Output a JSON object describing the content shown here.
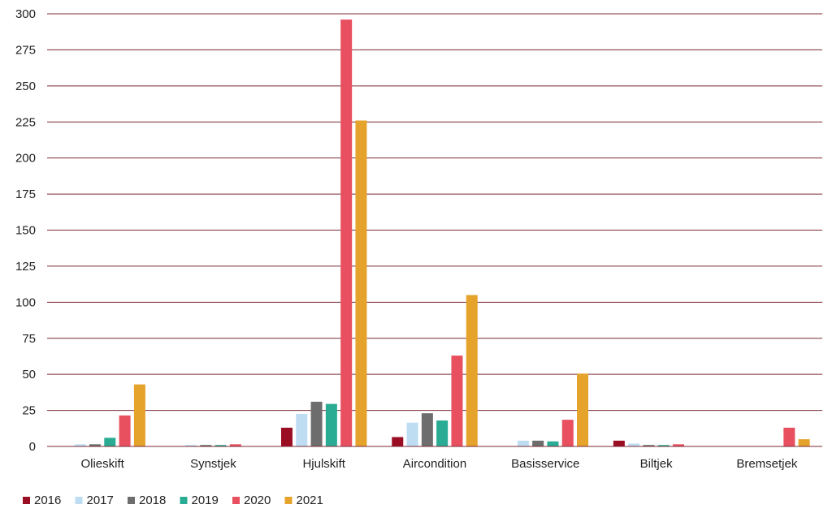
{
  "chart_data": {
    "type": "bar",
    "title": "",
    "xlabel": "",
    "ylabel": "",
    "ylim": [
      0,
      300
    ],
    "yticks": [
      0,
      25,
      50,
      75,
      100,
      125,
      150,
      175,
      200,
      225,
      250,
      275,
      300
    ],
    "grid": true,
    "legend_position": "bottom-left",
    "categories": [
      "Olieskift",
      "Synstjek",
      "Hjulskift",
      "Aircondition",
      "Basisservice",
      "Biltjek",
      "Bremsetjek"
    ],
    "series": [
      {
        "name": "2016",
        "color": "#9b0d23",
        "values": [
          0,
          0,
          13,
          6.5,
          0,
          4,
          0
        ]
      },
      {
        "name": "2017",
        "color": "#bedcf2",
        "values": [
          1.5,
          1,
          22.5,
          16.5,
          4,
          2,
          0
        ]
      },
      {
        "name": "2018",
        "color": "#6d6d6d",
        "values": [
          1.5,
          1,
          31,
          23,
          4,
          1,
          0
        ]
      },
      {
        "name": "2019",
        "color": "#2aab94",
        "values": [
          6,
          1,
          29.5,
          18,
          3.5,
          1,
          0
        ]
      },
      {
        "name": "2020",
        "color": "#e8505f",
        "values": [
          21.5,
          1.5,
          296,
          63,
          18.5,
          1.5,
          13
        ]
      },
      {
        "name": "2021",
        "color": "#e5a32c",
        "values": [
          43,
          0,
          226,
          105,
          50.5,
          0,
          5
        ]
      }
    ],
    "gridline_color": "#7a2a35",
    "axis_color": "#7a2a35"
  }
}
